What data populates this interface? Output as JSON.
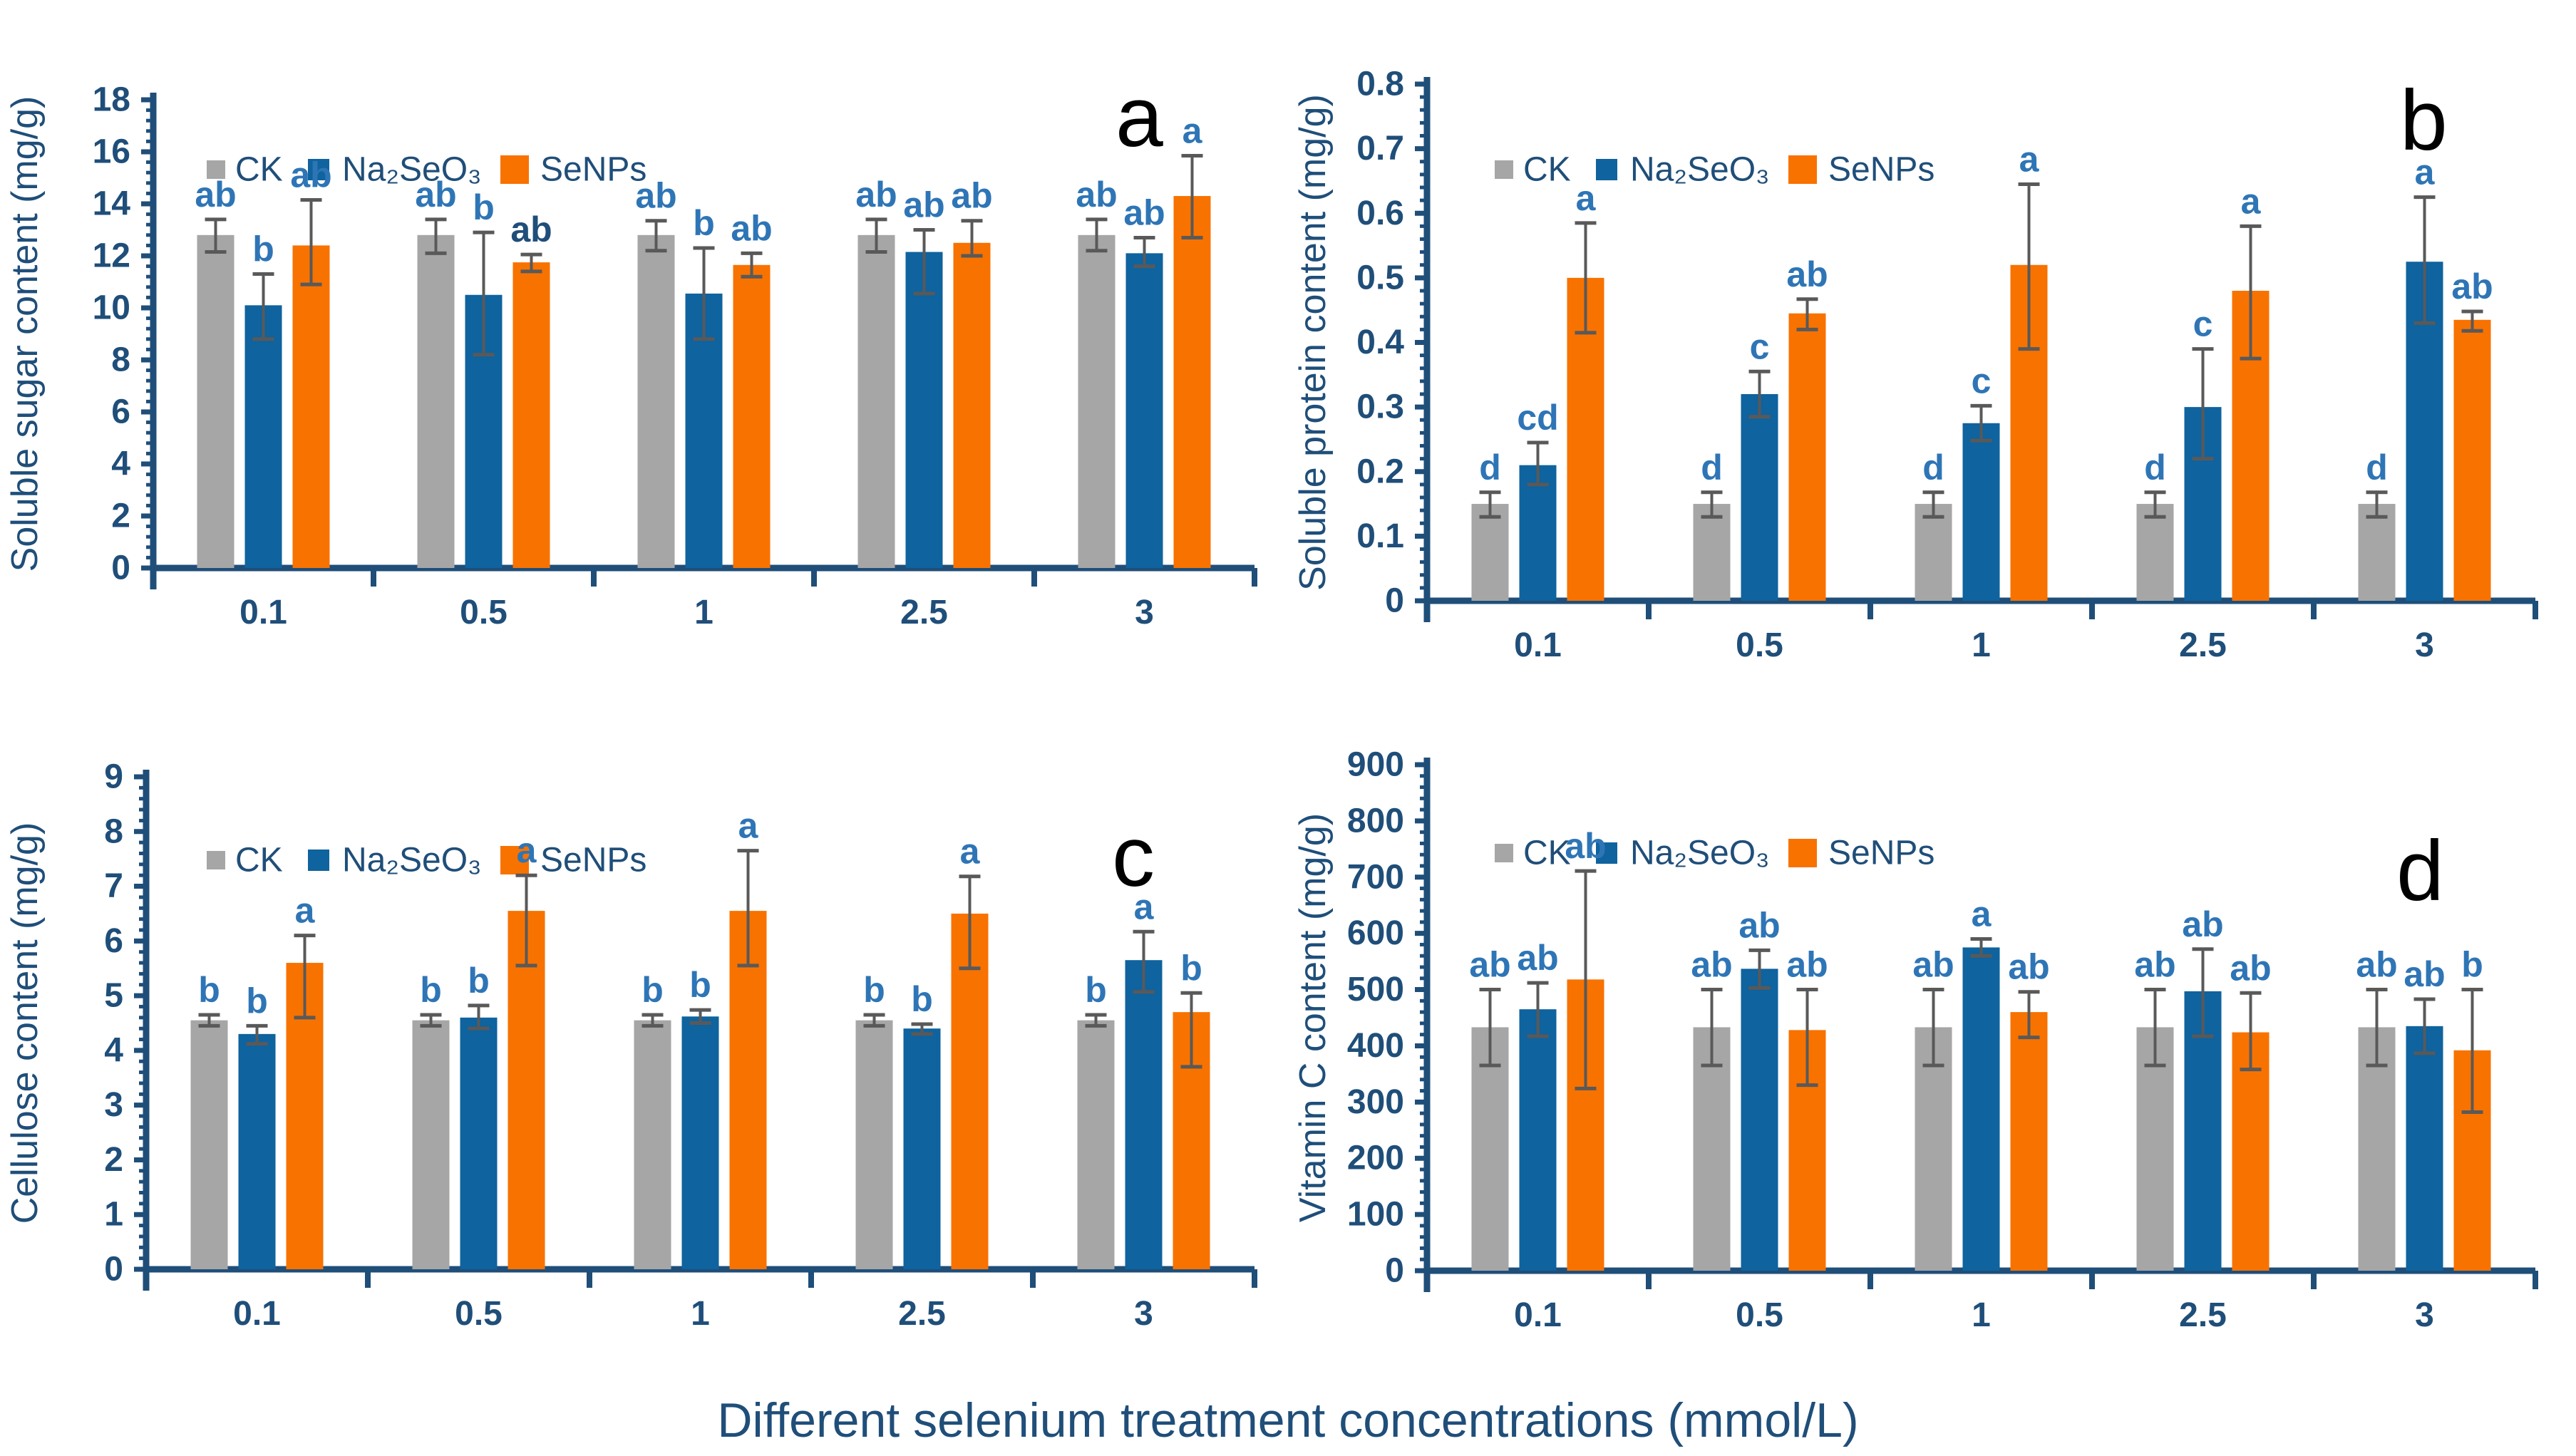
{
  "figure": {
    "x_axis_title": "Different selenium treatment concentrations (mmol/L)",
    "legend_labels": [
      "CK",
      "Na₂SeO₃",
      "SeNPs"
    ],
    "colors": {
      "ck": "#a6a6a6",
      "na2seo3": "#0f639e",
      "senps": "#f87200",
      "axis": "#1f4e79",
      "error_bar": "#595959",
      "sig_letter": "#2e75b6",
      "sig_letter_bold": "#1f4e79",
      "panel_letter": "#000000"
    }
  },
  "chart_data": [
    {
      "panel_letter": "a",
      "type": "bar",
      "ylabel": "Soluble sugar content (mg/g)",
      "ylim": [
        0,
        18
      ],
      "ytick_step": 2,
      "ytick_labels": [
        "0",
        "2",
        "4",
        "6",
        "8",
        "10",
        "12",
        "14",
        "16",
        "18"
      ],
      "minor_subdivisions": 5,
      "grid": false,
      "legend_position": "top-left",
      "categories": [
        "0.1",
        "0.5",
        "1",
        "2.5",
        "3"
      ],
      "series": [
        {
          "name": "CK",
          "color": "ck",
          "values": [
            12.8,
            12.8,
            12.8,
            12.8,
            12.8
          ],
          "err_up": [
            0.6,
            0.6,
            0.55,
            0.6,
            0.6
          ],
          "err_down": [
            0.65,
            0.7,
            0.6,
            0.65,
            0.6
          ],
          "letters": [
            "ab",
            "ab",
            "ab",
            "ab",
            "ab"
          ]
        },
        {
          "name": "Na₂SeO₃",
          "color": "na2seo3",
          "values": [
            10.1,
            10.5,
            10.55,
            12.15,
            12.1
          ],
          "err_up": [
            1.2,
            2.4,
            1.75,
            0.85,
            0.6
          ],
          "err_down": [
            1.3,
            2.3,
            1.75,
            1.6,
            0.5
          ],
          "letters": [
            "b",
            "b",
            "b",
            "ab",
            "ab"
          ]
        },
        {
          "name": "SeNPs",
          "color": "senps",
          "values": [
            12.4,
            11.75,
            11.65,
            12.5,
            14.3
          ],
          "err_up": [
            1.75,
            0.3,
            0.45,
            0.85,
            1.55
          ],
          "err_down": [
            1.5,
            0.35,
            0.45,
            0.5,
            1.6
          ],
          "letters": [
            "ab",
            "ab",
            "ab",
            "ab",
            "a"
          ],
          "letters_bold": [
            false,
            true,
            false,
            false,
            false
          ]
        }
      ]
    },
    {
      "panel_letter": "b",
      "type": "bar",
      "ylabel": "Soluble protein content (mg/g)",
      "ylim": [
        0,
        0.8
      ],
      "ytick_step": 0.1,
      "ytick_labels": [
        "0",
        "0.1",
        "0.2",
        "0.3",
        "0.4",
        "0.5",
        "0.6",
        "0.7",
        "0.8"
      ],
      "minor_subdivisions": 5,
      "grid": false,
      "legend_position": "top-left",
      "categories": [
        "0.1",
        "0.5",
        "1",
        "2.5",
        "3"
      ],
      "series": [
        {
          "name": "CK",
          "color": "ck",
          "values": [
            0.15,
            0.15,
            0.15,
            0.15,
            0.15
          ],
          "err_up": [
            0.018,
            0.018,
            0.018,
            0.018,
            0.018
          ],
          "err_down": [
            0.02,
            0.02,
            0.02,
            0.02,
            0.02
          ],
          "letters": [
            "d",
            "d",
            "d",
            "d",
            "d"
          ]
        },
        {
          "name": "Na₂SeO₃",
          "color": "na2seo3",
          "values": [
            0.21,
            0.32,
            0.275,
            0.3,
            0.525
          ],
          "err_up": [
            0.035,
            0.035,
            0.027,
            0.09,
            0.1
          ],
          "err_down": [
            0.03,
            0.035,
            0.027,
            0.08,
            0.095
          ],
          "letters": [
            "cd",
            "c",
            "c",
            "c",
            "a"
          ]
        },
        {
          "name": "SeNPs",
          "color": "senps",
          "values": [
            0.5,
            0.445,
            0.52,
            0.48,
            0.435
          ],
          "err_up": [
            0.085,
            0.022,
            0.125,
            0.1,
            0.013
          ],
          "err_down": [
            0.085,
            0.025,
            0.13,
            0.105,
            0.017
          ],
          "letters": [
            "a",
            "ab",
            "a",
            "a",
            "ab"
          ]
        }
      ]
    },
    {
      "panel_letter": "c",
      "type": "bar",
      "ylabel": "Cellulose content (mg/g)",
      "ylim": [
        0,
        9
      ],
      "ytick_step": 1,
      "ytick_labels": [
        "0",
        "1",
        "2",
        "3",
        "4",
        "5",
        "6",
        "7",
        "8",
        "9"
      ],
      "minor_subdivisions": 5,
      "grid": false,
      "legend_position": "top-left",
      "categories": [
        "0.1",
        "0.5",
        "1",
        "2.5",
        "3"
      ],
      "series": [
        {
          "name": "CK",
          "color": "ck",
          "values": [
            4.55,
            4.55,
            4.55,
            4.55,
            4.55
          ],
          "err_up": [
            0.1,
            0.1,
            0.1,
            0.1,
            0.1
          ],
          "err_down": [
            0.1,
            0.1,
            0.1,
            0.1,
            0.1
          ],
          "letters": [
            "b",
            "b",
            "b",
            "b",
            "b"
          ]
        },
        {
          "name": "Na₂SeO₃",
          "color": "na2seo3",
          "values": [
            4.3,
            4.6,
            4.62,
            4.4,
            5.65
          ],
          "err_up": [
            0.15,
            0.22,
            0.12,
            0.08,
            0.52
          ],
          "err_down": [
            0.18,
            0.2,
            0.12,
            0.1,
            0.58
          ],
          "letters": [
            "b",
            "b",
            "b",
            "b",
            "a"
          ]
        },
        {
          "name": "SeNPs",
          "color": "senps",
          "values": [
            5.6,
            6.55,
            6.55,
            6.5,
            4.7
          ],
          "err_up": [
            0.5,
            0.65,
            1.1,
            0.68,
            0.35
          ],
          "err_down": [
            1.0,
            1.0,
            1.0,
            1.0,
            1.0
          ],
          "letters": [
            "a",
            "a",
            "a",
            "a",
            "b"
          ]
        }
      ]
    },
    {
      "panel_letter": "d",
      "type": "bar",
      "ylabel": "Vitamin C content (mg/g)",
      "ylim": [
        0,
        900
      ],
      "ytick_step": 100,
      "ytick_labels": [
        "0",
        "100",
        "200",
        "300",
        "400",
        "500",
        "600",
        "700",
        "800",
        "900"
      ],
      "minor_subdivisions": 5,
      "grid": false,
      "legend_position": "top-left",
      "categories": [
        "0.1",
        "0.5",
        "1",
        "2.5",
        "3"
      ],
      "series": [
        {
          "name": "CK",
          "color": "ck",
          "values": [
            433,
            433,
            433,
            433,
            433
          ],
          "err_up": [
            67,
            67,
            67,
            67,
            67
          ],
          "err_down": [
            68,
            68,
            68,
            68,
            68
          ],
          "letters": [
            "ab",
            "ab",
            "ab",
            "ab",
            "ab"
          ]
        },
        {
          "name": "Na₂SeO₃",
          "color": "na2seo3",
          "values": [
            465,
            537,
            575,
            497,
            435
          ],
          "err_up": [
            47,
            33,
            15,
            75,
            48
          ],
          "err_down": [
            48,
            34,
            15,
            80,
            48
          ],
          "letters": [
            "ab",
            "ab",
            "a",
            "ab",
            "ab"
          ]
        },
        {
          "name": "SeNPs",
          "color": "senps",
          "values": [
            518,
            428,
            460,
            424,
            392
          ],
          "err_up": [
            193,
            72,
            36,
            70,
            108
          ],
          "err_down": [
            194,
            98,
            45,
            66,
            110
          ],
          "letters": [
            "ab",
            "ab",
            "ab",
            "ab",
            "b"
          ]
        }
      ]
    }
  ]
}
